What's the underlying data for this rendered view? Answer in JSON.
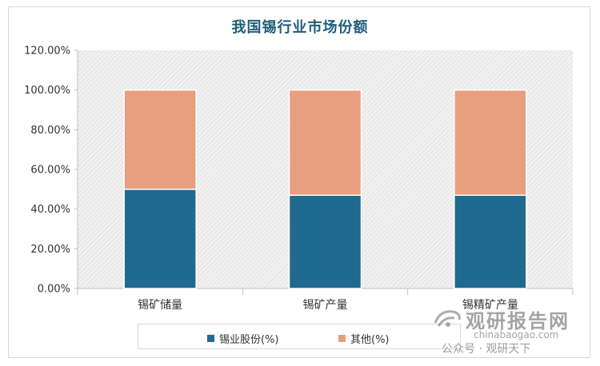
{
  "chart_data": {
    "type": "bar",
    "stacked": true,
    "title": "我国锡行业市场份额",
    "categories": [
      "锡矿储量",
      "锡矿产量",
      "锡精矿产量"
    ],
    "series": [
      {
        "name": "锡业股份(%)",
        "values": [
          50,
          47,
          47
        ],
        "color": "#1f6a8e"
      },
      {
        "name": "其他(%)",
        "values": [
          50,
          53,
          53
        ],
        "color": "#e89f80"
      }
    ],
    "ylim": [
      0,
      120
    ],
    "yticks": [
      "0.00%",
      "20.00%",
      "40.00%",
      "60.00%",
      "80.00%",
      "100.00%",
      "120.00%"
    ],
    "ytick_values": [
      0,
      20,
      40,
      60,
      80,
      100,
      120
    ],
    "legend_position": "bottom",
    "plot_background": "hatched-gray"
  },
  "watermark": {
    "brand": "观研报告网",
    "domain": "chinabaogao.com",
    "account": "公众号 · 观研天下"
  }
}
